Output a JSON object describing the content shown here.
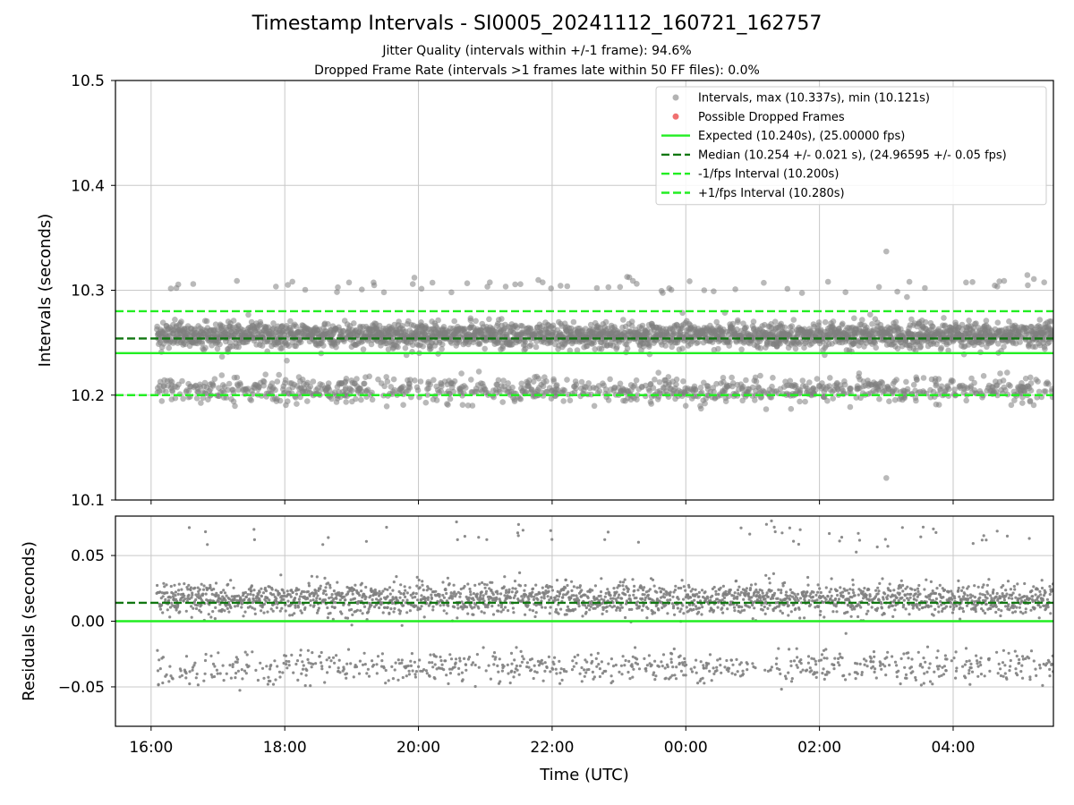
{
  "title": "Timestamp Intervals - SI0005_20241112_160721_162757",
  "subtitle_1": "Jitter Quality (intervals within +/-1 frame): 94.6%",
  "subtitle_2": "Dropped Frame Rate (intervals >1 frames late within 50 FF files): 0.0%",
  "colors": {
    "points": "#808080",
    "dropped": "#f07070",
    "expected": "#22ee22",
    "median": "#117711",
    "bounds": "#22ee22",
    "grid": "#c8c8c8"
  },
  "chart_data": [
    {
      "type": "scatter",
      "ylabel": "Intervals (seconds)",
      "xlabel": "",
      "ylim": [
        10.1,
        10.5
      ],
      "yticks": [
        "10.1",
        "10.2",
        "10.3",
        "10.4",
        "10.5"
      ],
      "xlim": [
        "15:28",
        "05:30"
      ],
      "xticks": [
        "16:00",
        "18:00",
        "20:00",
        "22:00",
        "00:00",
        "02:00",
        "04:00"
      ],
      "grid": true,
      "legend_placement": "top-right",
      "series": [
        {
          "name": "Intervals, max (10.337s), min (10.121s)",
          "kind": "points",
          "color": "#808080",
          "x_range": [
            "16:05",
            "05:30"
          ],
          "bands": [
            {
              "center": 10.257,
              "spread": 0.006,
              "fraction": 0.72
            },
            {
              "center": 10.205,
              "spread": 0.006,
              "fraction": 0.26
            },
            {
              "center": 10.305,
              "spread": 0.005,
              "fraction": 0.02
            }
          ],
          "max": 10.337,
          "min": 10.121
        },
        {
          "name": "Possible Dropped Frames",
          "kind": "points",
          "color": "#f07070",
          "values": []
        },
        {
          "name": "Expected (10.240s), (25.00000 fps)",
          "kind": "hline",
          "y": 10.24,
          "style": "solid",
          "color": "#22ee22"
        },
        {
          "name": "Median (10.254 +/- 0.021 s), (24.96595 +/- 0.05 fps)",
          "kind": "hline",
          "y": 10.254,
          "style": "dashed",
          "color": "#117711"
        },
        {
          "name": "-1/fps Interval (10.200s)",
          "kind": "hline",
          "y": 10.2,
          "style": "dashed",
          "color": "#22ee22"
        },
        {
          "name": "+1/fps Interval (10.280s)",
          "kind": "hline",
          "y": 10.28,
          "style": "dashed",
          "color": "#22ee22"
        }
      ]
    },
    {
      "type": "scatter",
      "ylabel": "Residuals (seconds)",
      "xlabel": "Time (UTC)",
      "ylim": [
        -0.08,
        0.08
      ],
      "yticks": [
        "−0.05",
        "0.00",
        "0.05"
      ],
      "ytick_values": [
        -0.05,
        0.0,
        0.05
      ],
      "xlim": [
        "15:28",
        "05:30"
      ],
      "xticks": [
        "16:00",
        "18:00",
        "20:00",
        "22:00",
        "00:00",
        "02:00",
        "04:00"
      ],
      "grid": true,
      "series": [
        {
          "kind": "points",
          "color": "#808080",
          "x_range": [
            "16:05",
            "05:30"
          ],
          "bands": [
            {
              "center": 0.017,
              "spread": 0.006,
              "fraction": 0.72
            },
            {
              "center": -0.035,
              "spread": 0.006,
              "fraction": 0.26
            },
            {
              "center": 0.065,
              "spread": 0.005,
              "fraction": 0.02
            }
          ]
        },
        {
          "kind": "hline",
          "y": 0.0,
          "style": "solid",
          "color": "#22ee22"
        },
        {
          "kind": "hline",
          "y": 0.014,
          "style": "dashed",
          "color": "#117711"
        }
      ]
    }
  ]
}
